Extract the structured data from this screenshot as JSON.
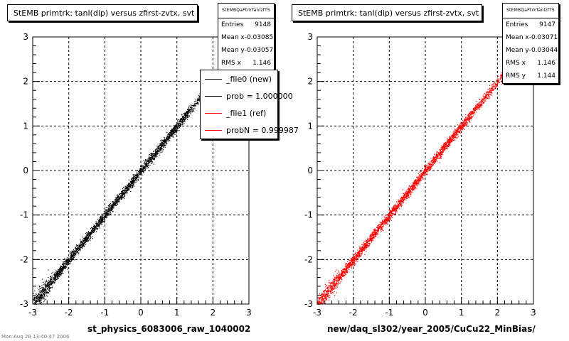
{
  "footer_text": "Mon Aug 28 13:40:47 2006",
  "chart_data": [
    {
      "type": "scatter",
      "title": "StEMB primtrk: tanl(dip) versus zfirst-zvtx, svt",
      "xlabel": "st_physics_6083006_raw_1040002",
      "ylabel": "",
      "xlim": [
        -3,
        3
      ],
      "ylim": [
        -3,
        3
      ],
      "xticks": [
        "-3",
        "-2",
        "-1",
        "0",
        "1",
        "2",
        "3"
      ],
      "yticks": [
        "-3",
        "-2",
        "-1",
        "0",
        "1",
        "2",
        "3"
      ],
      "grid": true,
      "series": [
        {
          "name": "_file0 (new)",
          "color": "#000000",
          "trend": {
            "slope": 1.0,
            "intercept": 0.0
          },
          "x_range": [
            -3.0,
            2.3
          ],
          "points": 9148
        }
      ],
      "stats": {
        "title": "StEMBQaPtrkTanlzfTS",
        "rows": [
          {
            "label": "Entries",
            "value": "9148"
          },
          {
            "label": "Mean x",
            "value": "-0.03085"
          },
          {
            "label": "Mean y",
            "value": "-0.03057"
          },
          {
            "label": "RMS x",
            "value": "1.146"
          }
        ]
      },
      "legend": [
        {
          "label": "_file0 (new)",
          "color": "#000000"
        },
        {
          "label": "prob = 1.000000",
          "color": "#000000"
        },
        {
          "label": "_file1 (ref)",
          "color": "#ff0000"
        },
        {
          "label": "probN = 0.999987",
          "color": "#ff0000"
        }
      ]
    },
    {
      "type": "scatter",
      "title": "StEMB primtrk: tanl(dip) versus zfirst-zvtx, svt",
      "xlabel": "new/daq_sl302/year_2005/CuCu22_MinBias/",
      "ylabel": "",
      "xlim": [
        -3,
        3
      ],
      "ylim": [
        -3,
        3
      ],
      "xticks": [
        "-3",
        "-2",
        "-1",
        "0",
        "1",
        "2",
        "3"
      ],
      "yticks": [
        "-3",
        "-2",
        "-1",
        "0",
        "1",
        "2",
        "3"
      ],
      "grid": true,
      "series": [
        {
          "name": "_file1 (ref)",
          "color": "#ff0000",
          "trend": {
            "slope": 1.0,
            "intercept": 0.0
          },
          "x_range": [
            -3.0,
            2.3
          ],
          "points": 9147
        }
      ],
      "stats": {
        "title": "StEMBQaPtrkTanlzfTS",
        "rows": [
          {
            "label": "Entries",
            "value": "9147"
          },
          {
            "label": "Mean x",
            "value": "-0.03071"
          },
          {
            "label": "Mean y",
            "value": "-0.03044"
          },
          {
            "label": "RMS x",
            "value": "1.146"
          },
          {
            "label": "RMS y",
            "value": "1.144"
          }
        ]
      }
    }
  ]
}
